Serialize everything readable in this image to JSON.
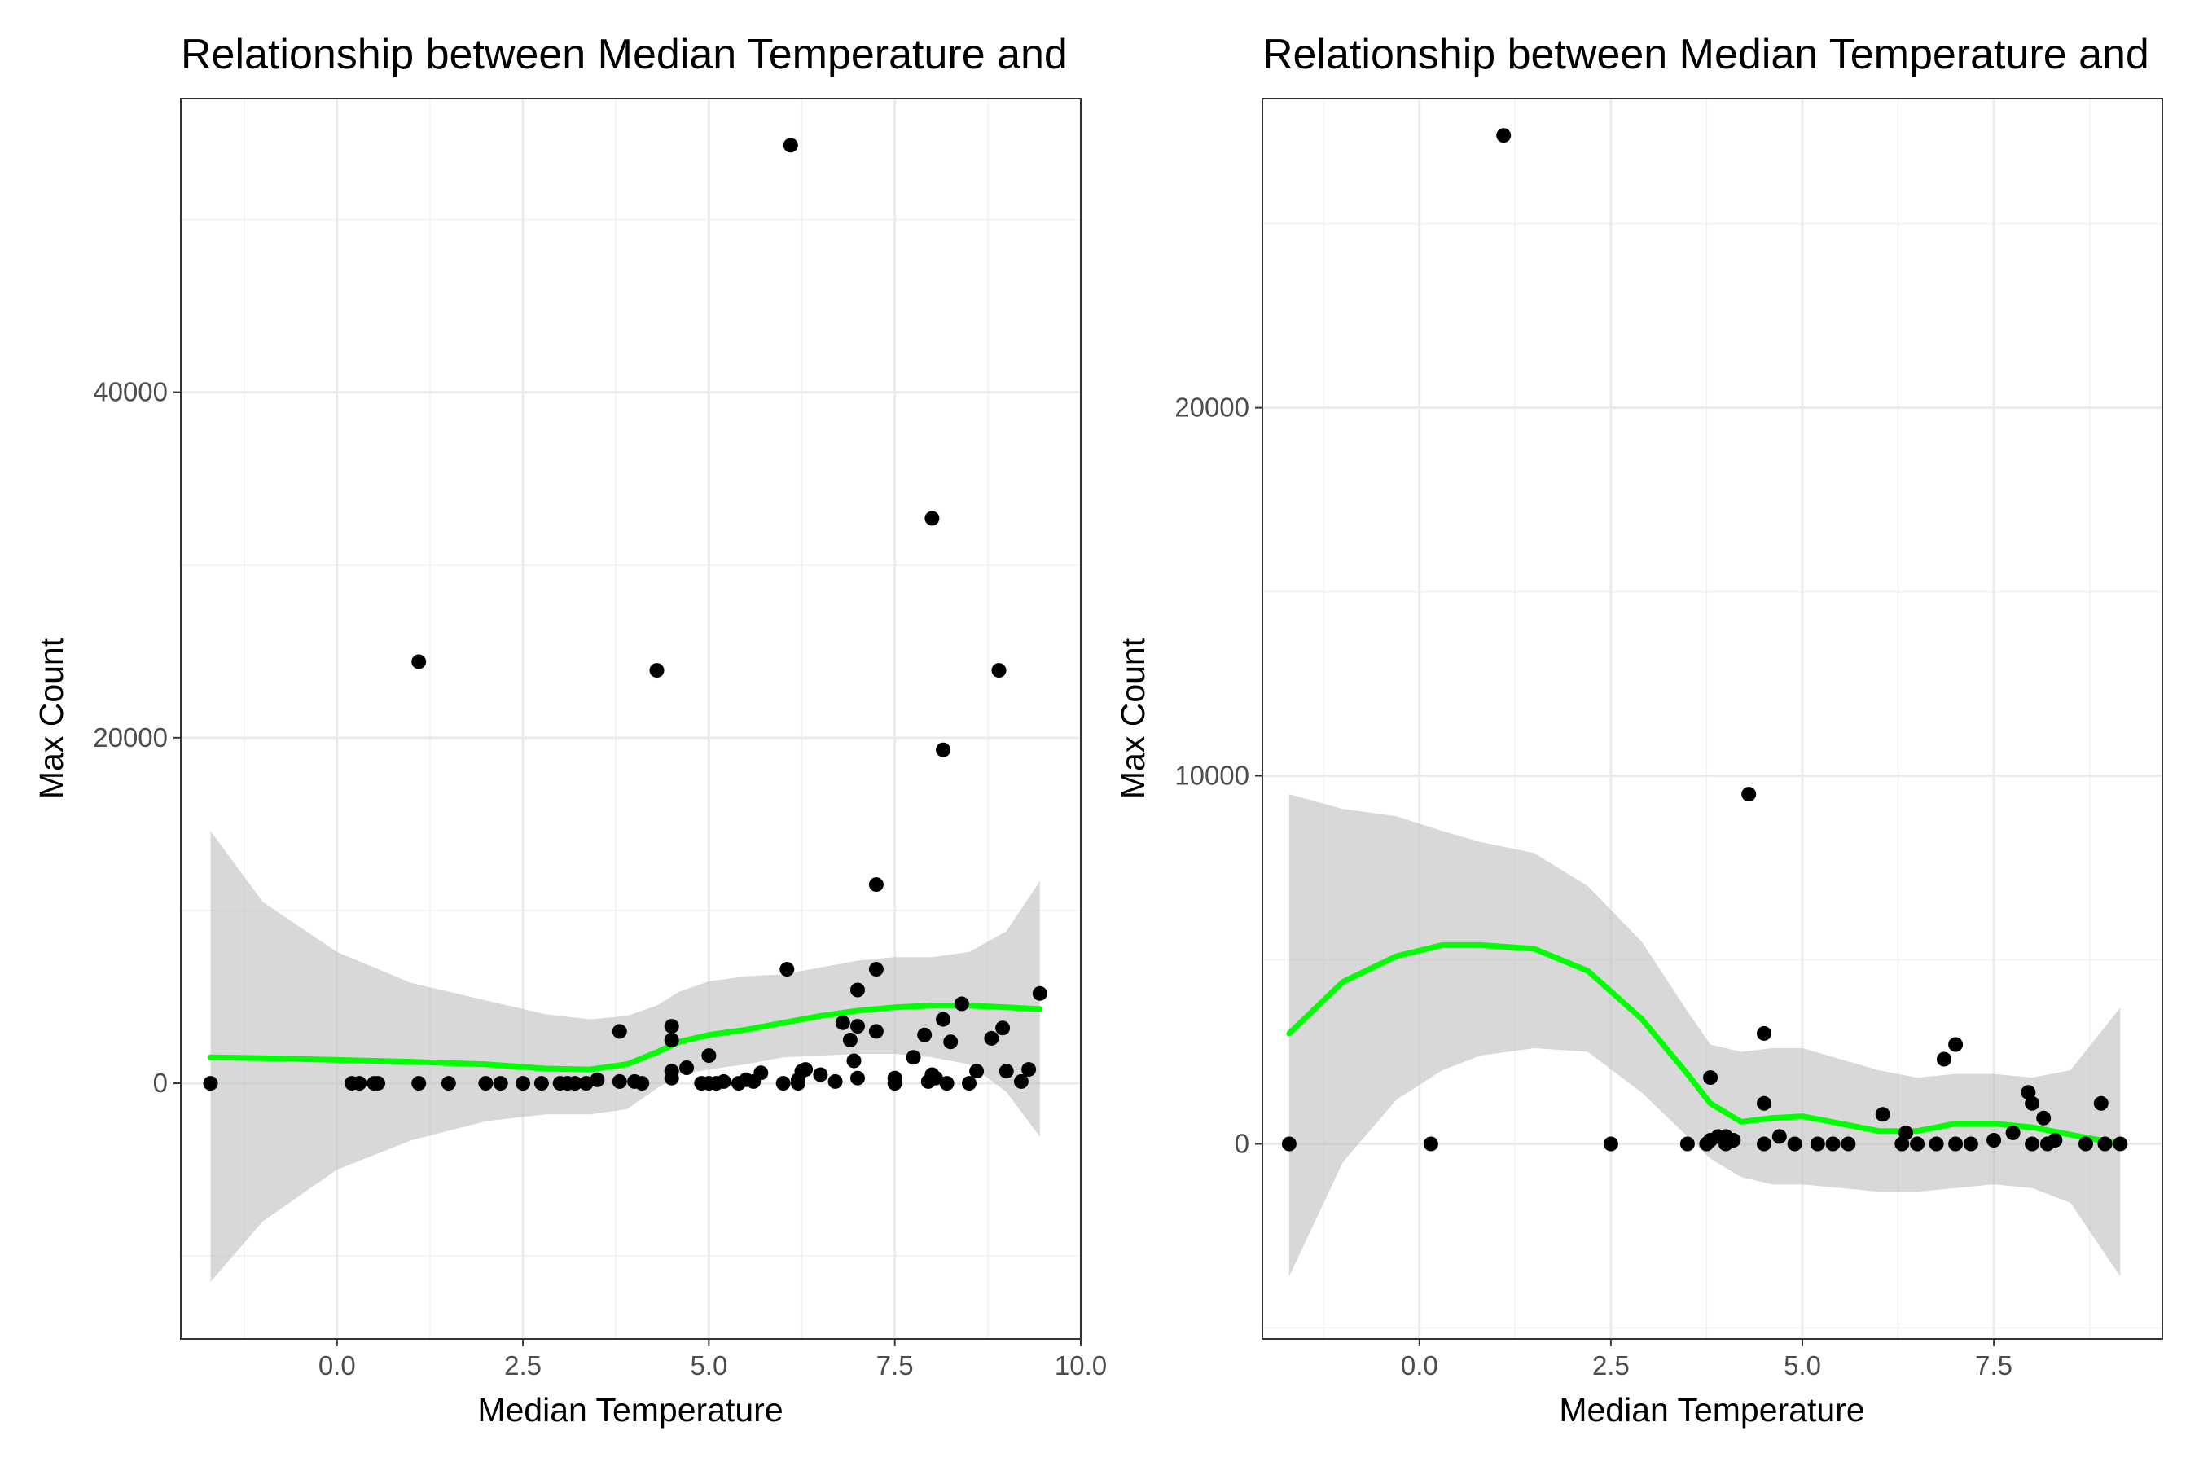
{
  "colors": {
    "point": "#000000",
    "smooth_line": "#00ff00",
    "ribbon": "#bebebe",
    "grid": "#ebebeb",
    "border": "#333333",
    "tick_text": "#4d4d4d"
  },
  "chart_data": [
    {
      "type": "scatter",
      "title": "Relationship between Median Temperature and",
      "xlabel": "Median Temperature",
      "ylabel": "Max Count",
      "xlim": [
        -2.1,
        10.0
      ],
      "ylim": [
        -14800,
        57000
      ],
      "xticks": [
        0.0,
        2.5,
        5.0,
        7.5,
        10.0
      ],
      "xtick_labels": [
        "0.0",
        "2.5",
        "5.0",
        "7.5",
        "10.0"
      ],
      "yticks": [
        0,
        20000,
        40000
      ],
      "ytick_labels": [
        "0",
        "20000",
        "40000"
      ],
      "grid": true,
      "legend": "none",
      "points": [
        [
          -1.7,
          0
        ],
        [
          0.2,
          0
        ],
        [
          0.3,
          0
        ],
        [
          0.5,
          0
        ],
        [
          0.55,
          0
        ],
        [
          1.1,
          0
        ],
        [
          1.1,
          24400
        ],
        [
          1.5,
          0
        ],
        [
          2.0,
          0
        ],
        [
          2.2,
          0
        ],
        [
          2.5,
          0
        ],
        [
          2.75,
          0
        ],
        [
          3.0,
          0
        ],
        [
          3.1,
          0
        ],
        [
          3.2,
          0
        ],
        [
          3.35,
          0
        ],
        [
          3.5,
          200
        ],
        [
          3.8,
          100
        ],
        [
          3.8,
          3000
        ],
        [
          4.0,
          100
        ],
        [
          4.1,
          0
        ],
        [
          4.3,
          23900
        ],
        [
          4.5,
          300
        ],
        [
          4.5,
          700
        ],
        [
          4.5,
          2500
        ],
        [
          4.5,
          3300
        ],
        [
          4.7,
          900
        ],
        [
          4.9,
          0
        ],
        [
          5.0,
          0
        ],
        [
          5.0,
          1600
        ],
        [
          5.1,
          0
        ],
        [
          5.2,
          100
        ],
        [
          5.4,
          0
        ],
        [
          5.5,
          200
        ],
        [
          5.6,
          100
        ],
        [
          5.7,
          600
        ],
        [
          6.0,
          0
        ],
        [
          6.05,
          6600
        ],
        [
          6.1,
          54300
        ],
        [
          6.2,
          0
        ],
        [
          6.2,
          200
        ],
        [
          6.25,
          700
        ],
        [
          6.3,
          800
        ],
        [
          6.5,
          500
        ],
        [
          6.7,
          100
        ],
        [
          6.8,
          3500
        ],
        [
          6.9,
          2500
        ],
        [
          6.95,
          1300
        ],
        [
          7.0,
          5400
        ],
        [
          7.0,
          3300
        ],
        [
          7.0,
          300
        ],
        [
          7.25,
          6600
        ],
        [
          7.25,
          11500
        ],
        [
          7.25,
          3000
        ],
        [
          7.5,
          0
        ],
        [
          7.5,
          300
        ],
        [
          7.75,
          1500
        ],
        [
          7.9,
          2800
        ],
        [
          7.95,
          100
        ],
        [
          8.0,
          32700
        ],
        [
          8.0,
          500
        ],
        [
          8.05,
          300
        ],
        [
          8.15,
          3700
        ],
        [
          8.15,
          19300
        ],
        [
          8.2,
          0
        ],
        [
          8.25,
          2400
        ],
        [
          8.4,
          4600
        ],
        [
          8.5,
          0
        ],
        [
          8.6,
          700
        ],
        [
          8.8,
          2600
        ],
        [
          8.9,
          23900
        ],
        [
          8.95,
          3200
        ],
        [
          9.0,
          700
        ],
        [
          9.2,
          100
        ],
        [
          9.3,
          800
        ],
        [
          9.45,
          5200
        ]
      ],
      "smooth": {
        "x": [
          -1.7,
          -1.0,
          0.0,
          1.0,
          2.0,
          2.8,
          3.4,
          3.9,
          4.3,
          4.6,
          5.0,
          5.5,
          6.0,
          6.5,
          7.0,
          7.5,
          8.0,
          8.5,
          9.0,
          9.45
        ],
        "y": [
          1500,
          1450,
          1350,
          1250,
          1100,
          850,
          800,
          1100,
          1800,
          2400,
          2800,
          3100,
          3500,
          3900,
          4200,
          4400,
          4500,
          4500,
          4400,
          4300
        ],
        "lower": [
          -11500,
          -8000,
          -5000,
          -3300,
          -2200,
          -1800,
          -1800,
          -1500,
          -300,
          500,
          800,
          1100,
          1500,
          1600,
          1700,
          1700,
          1500,
          1100,
          -500,
          -3100
        ],
        "upper": [
          14600,
          10500,
          7600,
          5800,
          4800,
          4000,
          3700,
          3900,
          4500,
          5300,
          5900,
          6200,
          6300,
          6700,
          7100,
          7300,
          7300,
          7600,
          8800,
          11700
        ]
      }
    },
    {
      "type": "scatter",
      "title": "Relationship between Median Temperature and",
      "xlabel": "Median Temperature",
      "ylabel": "Max Count",
      "xlim": [
        -2.05,
        9.7
      ],
      "ylim": [
        -5300,
        28400
      ],
      "xticks": [
        0.0,
        2.5,
        5.0,
        7.5
      ],
      "xtick_labels": [
        "0.0",
        "2.5",
        "5.0",
        "7.5"
      ],
      "yticks": [
        0,
        10000,
        20000
      ],
      "ytick_labels": [
        "0",
        "10000",
        "20000"
      ],
      "grid": true,
      "legend": "none",
      "points": [
        [
          -1.7,
          0
        ],
        [
          0.15,
          0
        ],
        [
          1.1,
          27400
        ],
        [
          2.5,
          0
        ],
        [
          3.5,
          0
        ],
        [
          3.75,
          0
        ],
        [
          3.8,
          1800
        ],
        [
          3.8,
          100
        ],
        [
          3.9,
          200
        ],
        [
          4.0,
          200
        ],
        [
          4.0,
          0
        ],
        [
          4.1,
          100
        ],
        [
          4.3,
          9500
        ],
        [
          4.5,
          3000
        ],
        [
          4.5,
          1100
        ],
        [
          4.5,
          0
        ],
        [
          4.7,
          200
        ],
        [
          4.9,
          0
        ],
        [
          5.2,
          0
        ],
        [
          5.4,
          0
        ],
        [
          5.6,
          0
        ],
        [
          6.05,
          800
        ],
        [
          6.3,
          0
        ],
        [
          6.35,
          300
        ],
        [
          6.5,
          0
        ],
        [
          6.75,
          0
        ],
        [
          6.85,
          2300
        ],
        [
          7.0,
          2700
        ],
        [
          7.0,
          0
        ],
        [
          7.2,
          0
        ],
        [
          7.5,
          100
        ],
        [
          7.75,
          300
        ],
        [
          7.95,
          1400
        ],
        [
          8.0,
          1100
        ],
        [
          8.0,
          0
        ],
        [
          8.15,
          700
        ],
        [
          8.2,
          0
        ],
        [
          8.3,
          100
        ],
        [
          8.7,
          0
        ],
        [
          8.9,
          1100
        ],
        [
          8.95,
          0
        ],
        [
          9.15,
          0
        ]
      ],
      "smooth": {
        "x": [
          -1.7,
          -1.0,
          -0.3,
          0.3,
          0.8,
          1.5,
          2.2,
          2.9,
          3.5,
          3.8,
          4.2,
          4.6,
          5.0,
          5.5,
          6.0,
          6.5,
          7.0,
          7.5,
          8.0,
          8.5,
          9.15
        ],
        "y": [
          3000,
          4400,
          5100,
          5400,
          5400,
          5300,
          4700,
          3400,
          1900,
          1100,
          600,
          700,
          750,
          550,
          350,
          350,
          550,
          550,
          450,
          250,
          0
        ],
        "lower": [
          -3600,
          -500,
          1200,
          2000,
          2400,
          2600,
          2500,
          1400,
          200,
          -400,
          -900,
          -1100,
          -1100,
          -1200,
          -1300,
          -1300,
          -1200,
          -1100,
          -1200,
          -1600,
          -3600
        ],
        "upper": [
          9500,
          9100,
          8900,
          8500,
          8200,
          7900,
          7000,
          5500,
          3600,
          2700,
          2500,
          2600,
          2600,
          2300,
          2000,
          1800,
          1900,
          1900,
          1800,
          2000,
          3700
        ]
      }
    }
  ]
}
